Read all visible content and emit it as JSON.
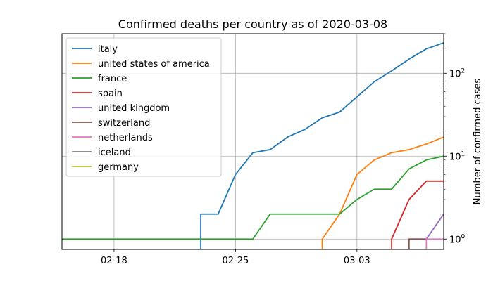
{
  "chart_data": {
    "type": "line",
    "title": "Confirmed deaths per country as of 2020-03-08",
    "xlabel": "",
    "ylabel": "Number of confirmed cases",
    "y_axis_side": "right",
    "yscale": "log",
    "ylim": [
      0.75,
      300
    ],
    "xlim": [
      "2020-02-15",
      "2020-03-08"
    ],
    "grid": true,
    "legend_position": "top-left",
    "x_ticks": [
      {
        "date": "2020-02-18",
        "label": "02-18"
      },
      {
        "date": "2020-02-25",
        "label": "02-25"
      },
      {
        "date": "2020-03-03",
        "label": "03-03"
      }
    ],
    "y_ticks": [
      {
        "value": 1,
        "base": "10",
        "exp": "0"
      },
      {
        "value": 10,
        "base": "10",
        "exp": "1"
      },
      {
        "value": 100,
        "base": "10",
        "exp": "2"
      }
    ],
    "series": [
      {
        "name": "italy",
        "color": "#1f77b4",
        "points": [
          [
            "2020-02-23",
            2
          ],
          [
            "2020-02-24",
            2
          ],
          [
            "2020-02-25",
            6
          ],
          [
            "2020-02-26",
            11
          ],
          [
            "2020-02-27",
            12
          ],
          [
            "2020-02-28",
            17
          ],
          [
            "2020-02-29",
            21
          ],
          [
            "2020-03-01",
            29
          ],
          [
            "2020-03-02",
            34
          ],
          [
            "2020-03-03",
            52
          ],
          [
            "2020-03-04",
            79
          ],
          [
            "2020-03-05",
            107
          ],
          [
            "2020-03-06",
            148
          ],
          [
            "2020-03-07",
            197
          ],
          [
            "2020-03-08",
            233
          ]
        ]
      },
      {
        "name": "united states of america",
        "color": "#ff7f0e",
        "points": [
          [
            "2020-03-01",
            1
          ],
          [
            "2020-03-02",
            2
          ],
          [
            "2020-03-03",
            6
          ],
          [
            "2020-03-04",
            9
          ],
          [
            "2020-03-05",
            11
          ],
          [
            "2020-03-06",
            12
          ],
          [
            "2020-03-07",
            14
          ],
          [
            "2020-03-08",
            17
          ]
        ]
      },
      {
        "name": "france",
        "color": "#2ca02c",
        "points": [
          [
            "2020-02-15",
            1
          ],
          [
            "2020-02-16",
            1
          ],
          [
            "2020-02-17",
            1
          ],
          [
            "2020-02-18",
            1
          ],
          [
            "2020-02-19",
            1
          ],
          [
            "2020-02-20",
            1
          ],
          [
            "2020-02-21",
            1
          ],
          [
            "2020-02-22",
            1
          ],
          [
            "2020-02-23",
            1
          ],
          [
            "2020-02-24",
            1
          ],
          [
            "2020-02-25",
            1
          ],
          [
            "2020-02-26",
            1
          ],
          [
            "2020-02-27",
            2
          ],
          [
            "2020-02-28",
            2
          ],
          [
            "2020-02-29",
            2
          ],
          [
            "2020-03-01",
            2
          ],
          [
            "2020-03-02",
            2
          ],
          [
            "2020-03-03",
            3
          ],
          [
            "2020-03-04",
            4
          ],
          [
            "2020-03-05",
            4
          ],
          [
            "2020-03-06",
            7
          ],
          [
            "2020-03-07",
            9
          ],
          [
            "2020-03-08",
            10
          ]
        ]
      },
      {
        "name": "spain",
        "color": "#d62728",
        "points": [
          [
            "2020-03-05",
            1
          ],
          [
            "2020-03-06",
            3
          ],
          [
            "2020-03-07",
            5
          ],
          [
            "2020-03-08",
            5
          ]
        ]
      },
      {
        "name": "united kingdom",
        "color": "#9467bd",
        "points": [
          [
            "2020-03-06",
            1
          ],
          [
            "2020-03-07",
            1
          ],
          [
            "2020-03-08",
            2
          ]
        ]
      },
      {
        "name": "switzerland",
        "color": "#8c564b",
        "points": [
          [
            "2020-03-06",
            1
          ],
          [
            "2020-03-07",
            1
          ]
        ]
      },
      {
        "name": "netherlands",
        "color": "#e377c2",
        "points": [
          [
            "2020-03-07",
            1
          ],
          [
            "2020-03-08",
            1
          ]
        ]
      },
      {
        "name": "iceland",
        "color": "#7f7f7f",
        "points": []
      },
      {
        "name": "germany",
        "color": "#bcbd22",
        "points": []
      }
    ]
  }
}
